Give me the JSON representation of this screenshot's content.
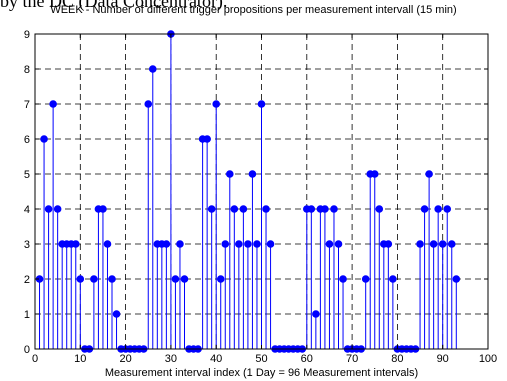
{
  "caption_fragment": "by the DC (Data Concentrator).",
  "chart_data": {
    "type": "stem",
    "title": "WEEK - Number of different trigger propositions per measurement intervall (15 min)",
    "xlabel": "Measurement interval index (1 Day = 96 Measurement intervals)",
    "ylabel": "",
    "xlim": [
      0,
      100
    ],
    "ylim": [
      0,
      9
    ],
    "xticks": [
      0,
      10,
      20,
      30,
      40,
      50,
      60,
      70,
      80,
      90,
      100
    ],
    "yticks": [
      0,
      1,
      2,
      3,
      4,
      5,
      6,
      7,
      8,
      9
    ],
    "grid": true,
    "grid_style": "dashed",
    "color": "#0000ff",
    "x": [
      1,
      2,
      3,
      4,
      5,
      6,
      7,
      8,
      9,
      10,
      11,
      12,
      13,
      14,
      15,
      16,
      17,
      18,
      19,
      20,
      21,
      22,
      23,
      24,
      25,
      26,
      27,
      28,
      29,
      30,
      31,
      32,
      33,
      34,
      35,
      36,
      37,
      38,
      39,
      40,
      41,
      42,
      43,
      44,
      45,
      46,
      47,
      48,
      49,
      50,
      51,
      52,
      53,
      54,
      55,
      56,
      57,
      58,
      59,
      60,
      61,
      62,
      63,
      64,
      65,
      66,
      67,
      68,
      69,
      70,
      71,
      72,
      73,
      74,
      75,
      76,
      77,
      78,
      79,
      80,
      81,
      82,
      83,
      84,
      85,
      86,
      87,
      88,
      89,
      90,
      91,
      92,
      93
    ],
    "values": [
      2,
      6,
      4,
      7,
      4,
      3,
      3,
      3,
      3,
      2,
      0,
      0,
      2,
      4,
      4,
      3,
      2,
      1,
      0,
      0,
      0,
      0,
      0,
      0,
      7,
      8,
      3,
      3,
      3,
      9,
      2,
      3,
      2,
      0,
      0,
      0,
      6,
      6,
      4,
      7,
      2,
      3,
      5,
      4,
      3,
      4,
      3,
      5,
      3,
      7,
      4,
      3,
      0,
      0,
      0,
      0,
      0,
      0,
      0,
      4,
      4,
      1,
      4,
      4,
      3,
      4,
      3,
      2,
      0,
      0,
      0,
      0,
      2,
      5,
      5,
      4,
      3,
      3,
      2,
      0,
      0,
      0,
      0,
      0,
      3,
      4,
      5,
      3,
      4,
      3,
      4,
      3,
      2
    ]
  }
}
